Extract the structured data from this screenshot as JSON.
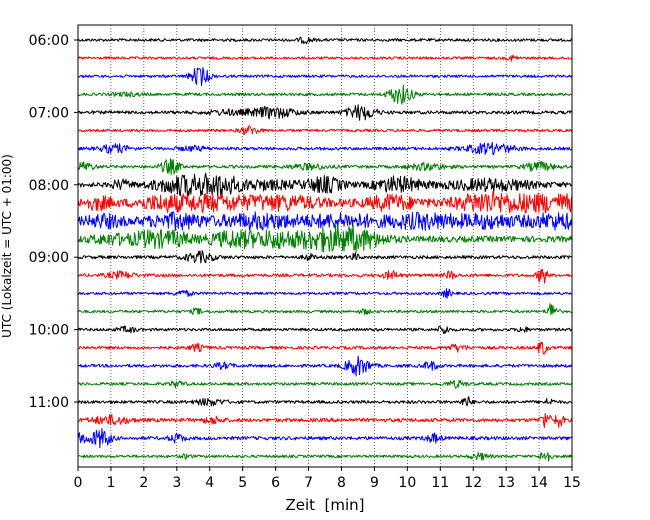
{
  "chart_data": {
    "type": "line",
    "title": "",
    "xlabel": "Zeit  [min]",
    "ylabel": "UTC (Lokalzeit = UTC + 01:00)",
    "xlim": [
      0,
      15
    ],
    "x_ticks": [
      "0",
      "1",
      "2",
      "3",
      "4",
      "5",
      "6",
      "7",
      "8",
      "9",
      "10",
      "11",
      "12",
      "13",
      "14",
      "15"
    ],
    "y_ticks": [
      "06:00",
      "07:00",
      "08:00",
      "09:00",
      "10:00",
      "11:00"
    ],
    "grid": {
      "x": true,
      "style": "dotted"
    },
    "trace_interval_minutes": 15,
    "first_trace": "06:00",
    "colors": [
      "#000000",
      "#ff0000",
      "#0000ff",
      "#008000"
    ],
    "traces": [
      {
        "start": "06:00",
        "color": "#000000",
        "noise": 1.4,
        "events": [
          [
            6.9,
            2.5,
            0.15
          ]
        ]
      },
      {
        "start": "06:15",
        "color": "#ff0000",
        "noise": 1.3,
        "events": [
          [
            13.2,
            2.5,
            0.1
          ]
        ]
      },
      {
        "start": "06:30",
        "color": "#0000ff",
        "noise": 1.3,
        "events": [
          [
            3.7,
            9,
            0.2
          ]
        ]
      },
      {
        "start": "06:45",
        "color": "#008000",
        "noise": 1.4,
        "events": [
          [
            9.8,
            9,
            0.25
          ],
          [
            1.5,
            1.5,
            0.3
          ]
        ]
      },
      {
        "start": "07:00",
        "color": "#000000",
        "noise": 1.6,
        "events": [
          [
            5.9,
            5,
            0.5
          ],
          [
            8.6,
            7,
            0.3
          ],
          [
            4.5,
            2,
            0.4
          ]
        ]
      },
      {
        "start": "07:15",
        "color": "#ff0000",
        "noise": 1.3,
        "events": [
          [
            5.2,
            4,
            0.2
          ]
        ]
      },
      {
        "start": "07:30",
        "color": "#0000ff",
        "noise": 1.5,
        "events": [
          [
            1.1,
            4,
            0.3
          ],
          [
            12.5,
            5,
            0.5
          ],
          [
            3.5,
            2,
            0.3
          ]
        ]
      },
      {
        "start": "07:45",
        "color": "#008000",
        "noise": 1.5,
        "events": [
          [
            2.8,
            7,
            0.2
          ],
          [
            0.2,
            4,
            0.2
          ],
          [
            10.6,
            3,
            0.4
          ],
          [
            14.0,
            4,
            0.3
          ],
          [
            7.0,
            2.5,
            0.4
          ]
        ]
      },
      {
        "start": "08:00",
        "color": "#000000",
        "noise": 2.2,
        "events": [
          [
            3.0,
            6,
            0.6
          ],
          [
            3.8,
            6,
            0.6
          ],
          [
            7.5,
            7,
            0.4
          ],
          [
            9.7,
            7,
            0.5
          ],
          [
            4.4,
            5,
            0.3
          ],
          [
            1.3,
            4,
            0.2
          ],
          [
            12.5,
            5,
            1.0
          ],
          [
            5.6,
            4,
            0.8
          ]
        ]
      },
      {
        "start": "08:15",
        "color": "#ff0000",
        "noise": 3.5,
        "events": [
          [
            4.0,
            6,
            1.0
          ],
          [
            9.5,
            6,
            0.5
          ],
          [
            14.0,
            7,
            1.5
          ],
          [
            0.6,
            5,
            0.3
          ],
          [
            6.3,
            5,
            0.8
          ],
          [
            12.3,
            5,
            0.5
          ],
          [
            2.5,
            4,
            0.5
          ]
        ]
      },
      {
        "start": "08:30",
        "color": "#0000ff",
        "noise": 3.5,
        "events": [
          [
            3.0,
            6,
            0.6
          ],
          [
            5.5,
            6,
            0.8
          ],
          [
            10.5,
            6,
            0.8
          ],
          [
            14.5,
            6,
            0.6
          ],
          [
            8.0,
            5,
            0.8
          ],
          [
            0.8,
            5,
            0.4
          ],
          [
            12.5,
            5,
            0.6
          ]
        ]
      },
      {
        "start": "08:45",
        "color": "#008000",
        "noise": 3.0,
        "events": [
          [
            7.6,
            10,
            0.8
          ],
          [
            2.2,
            7,
            0.4
          ],
          [
            4.8,
            7,
            0.6
          ],
          [
            6.0,
            5,
            0.4
          ],
          [
            3.0,
            5,
            0.3
          ],
          [
            1.0,
            4,
            0.4
          ],
          [
            8.6,
            5,
            0.5
          ]
        ]
      },
      {
        "start": "09:00",
        "color": "#000000",
        "noise": 1.6,
        "events": [
          [
            3.7,
            5,
            0.3
          ],
          [
            7.0,
            3,
            0.1
          ],
          [
            8.4,
            3,
            0.1
          ]
        ]
      },
      {
        "start": "09:15",
        "color": "#ff0000",
        "noise": 1.5,
        "events": [
          [
            14.1,
            9,
            0.1
          ],
          [
            9.5,
            4,
            0.15
          ],
          [
            1.3,
            3,
            0.3
          ],
          [
            11.3,
            4,
            0.1
          ]
        ]
      },
      {
        "start": "09:30",
        "color": "#0000ff",
        "noise": 1.3,
        "events": [
          [
            11.2,
            4,
            0.1
          ],
          [
            3.2,
            2.5,
            0.2
          ]
        ]
      },
      {
        "start": "09:45",
        "color": "#008000",
        "noise": 1.3,
        "events": [
          [
            14.4,
            9,
            0.1
          ],
          [
            3.6,
            3,
            0.1
          ],
          [
            8.7,
            2.5,
            0.1
          ]
        ]
      },
      {
        "start": "10:00",
        "color": "#000000",
        "noise": 1.4,
        "events": [
          [
            11.1,
            5,
            0.1
          ],
          [
            13.5,
            3,
            0.1
          ],
          [
            1.5,
            2.5,
            0.2
          ]
        ]
      },
      {
        "start": "10:15",
        "color": "#ff0000",
        "noise": 1.5,
        "events": [
          [
            14.1,
            7,
            0.1
          ],
          [
            3.6,
            3,
            0.15
          ],
          [
            11.5,
            3,
            0.2
          ]
        ]
      },
      {
        "start": "10:30",
        "color": "#0000ff",
        "noise": 1.5,
        "events": [
          [
            8.5,
            9,
            0.25
          ],
          [
            10.7,
            4,
            0.15
          ],
          [
            4.4,
            2.5,
            0.2
          ]
        ]
      },
      {
        "start": "10:45",
        "color": "#008000",
        "noise": 1.4,
        "events": [
          [
            3.0,
            3,
            0.15
          ],
          [
            11.5,
            3,
            0.2
          ]
        ]
      },
      {
        "start": "11:00",
        "color": "#000000",
        "noise": 1.5,
        "events": [
          [
            11.8,
            5,
            0.1
          ],
          [
            14.3,
            3,
            0.1
          ],
          [
            4.0,
            3,
            0.3
          ]
        ]
      },
      {
        "start": "11:15",
        "color": "#ff0000",
        "noise": 1.8,
        "events": [
          [
            14.2,
            8,
            0.1
          ],
          [
            14.6,
            6,
            0.1
          ],
          [
            1.0,
            4,
            0.4
          ],
          [
            4.1,
            3,
            0.2
          ]
        ]
      },
      {
        "start": "11:30",
        "color": "#0000ff",
        "noise": 1.7,
        "events": [
          [
            0.7,
            9,
            0.2
          ],
          [
            3.0,
            4,
            0.15
          ],
          [
            10.8,
            4,
            0.15
          ],
          [
            0.1,
            4,
            0.2
          ]
        ]
      },
      {
        "start": "11:45",
        "color": "#008000",
        "noise": 1.3,
        "events": [
          [
            14.2,
            8,
            0.1
          ],
          [
            12.2,
            3,
            0.2
          ],
          [
            3.3,
            2,
            0.1
          ]
        ]
      }
    ]
  }
}
